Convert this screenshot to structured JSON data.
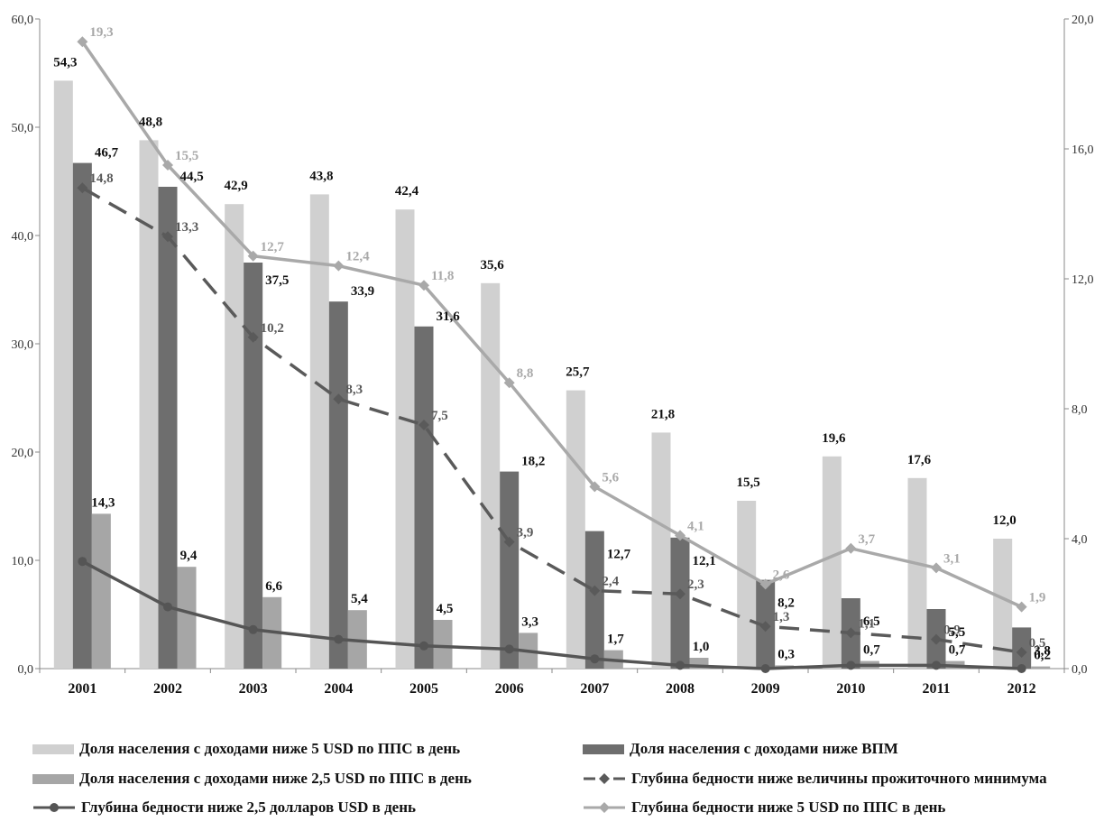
{
  "chart_data": {
    "type": "bar",
    "categories": [
      "2001",
      "2002",
      "2003",
      "2004",
      "2005",
      "2006",
      "2007",
      "2008",
      "2009",
      "2010",
      "2011",
      "2012"
    ],
    "ylim_left": [
      0,
      60
    ],
    "ylim_right": [
      0,
      20
    ],
    "left_ticks": [
      "0,0",
      "10,0",
      "20,0",
      "30,0",
      "40,0",
      "50,0",
      "60,0"
    ],
    "right_ticks": [
      "0,0",
      "4,0",
      "8,0",
      "12,0",
      "16,0",
      "20,0"
    ],
    "grid": false,
    "legend_position": "bottom",
    "bar_series": [
      {
        "name": "Доля населения с доходами ниже 5 USD по ППС в  день",
        "color": "#d0d0d0",
        "values": [
          54.3,
          48.8,
          42.9,
          43.8,
          42.4,
          35.6,
          25.7,
          21.8,
          15.5,
          19.6,
          17.6,
          12.0
        ],
        "labels": [
          "54,3",
          "48,8",
          "42,9",
          "43,8",
          "42,4",
          "35,6",
          "25,7",
          "21,8",
          "15,5",
          "19,6",
          "17,6",
          "12,0"
        ]
      },
      {
        "name": "Доля населения с доходами ниже ВПМ",
        "color": "#6e6e6e",
        "values": [
          46.7,
          44.5,
          37.5,
          33.9,
          31.6,
          18.2,
          12.7,
          12.1,
          8.2,
          6.5,
          5.5,
          3.8
        ],
        "labels": [
          "46,7",
          "44,5",
          "37,5",
          "33,9",
          "31,6",
          "18,2",
          "12,7",
          "12,1",
          "8,2",
          "6,5",
          "5,5",
          "3,8"
        ]
      },
      {
        "name": "Доля населения с доходами ниже 2,5 USD по ППС в  день",
        "color": "#a6a6a6",
        "values": [
          14.3,
          9.4,
          6.6,
          5.4,
          4.5,
          3.3,
          1.7,
          1.0,
          0.3,
          0.7,
          0.7,
          0.2
        ],
        "labels": [
          "14,3",
          "9,4",
          "6,6",
          "5,4",
          "4,5",
          "3,3",
          "1,7",
          "1,0",
          "0,3",
          "0,7",
          "0,7",
          "0,2"
        ]
      }
    ],
    "line_series": [
      {
        "name": "Глубина бедности ниже величины прожиточного минимума",
        "color": "#5a5a5a",
        "axis": "right",
        "dash": true,
        "marker": "diamond",
        "values": [
          14.8,
          13.3,
          10.2,
          8.3,
          7.5,
          3.9,
          2.4,
          2.3,
          1.3,
          1.1,
          0.9,
          0.5
        ],
        "labels": [
          "14,8",
          "13,3",
          "10,2",
          "8,3",
          "7,5",
          "3,9",
          "2,4",
          "2,3",
          "1,3",
          "1,1",
          "0,9",
          "0,5"
        ]
      },
      {
        "name": "Глубина бедности ниже 2,5 долларов USD в  день",
        "color": "#555555",
        "axis": "right",
        "dash": false,
        "marker": "circle",
        "values": [
          3.3,
          1.9,
          1.2,
          0.9,
          0.7,
          0.6,
          0.3,
          0.1,
          0.0,
          0.1,
          0.1,
          0.0
        ],
        "labels": []
      },
      {
        "name": "Глубина бедности ниже 5 USD по ППС в  день",
        "color": "#a9a9a9",
        "axis": "right",
        "dash": false,
        "marker": "diamond",
        "values": [
          19.3,
          15.5,
          12.7,
          12.4,
          11.8,
          8.8,
          5.6,
          4.1,
          2.6,
          3.7,
          3.1,
          1.9
        ],
        "labels": [
          "19,3",
          "15,5",
          "12,7",
          "12,4",
          "11,8",
          "8,8",
          "5,6",
          "4,1",
          "2,6",
          "3,7",
          "3,1",
          "1,9"
        ]
      }
    ]
  },
  "legend": [
    {
      "name": "Доля населения с доходами ниже 5 USD по ППС в  день",
      "kind": "box",
      "color": "#d0d0d0"
    },
    {
      "name": "Доля населения с доходами ниже ВПМ",
      "kind": "box",
      "color": "#6e6e6e"
    },
    {
      "name": "Доля населения с доходами ниже 2,5 USD по ППС в  день",
      "kind": "box",
      "color": "#a6a6a6"
    },
    {
      "name": "Глубина бедности ниже величины прожиточного минимума",
      "kind": "dash-diamond",
      "color": "#5a5a5a"
    },
    {
      "name": "Глубина бедности ниже 2,5 долларов USD в  день",
      "kind": "line-circle",
      "color": "#555555"
    },
    {
      "name": "Глубина бедности ниже 5 USD по ППС в  день",
      "kind": "line-diamond",
      "color": "#a9a9a9"
    }
  ]
}
